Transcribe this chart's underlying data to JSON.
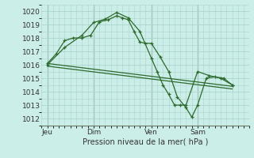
{
  "background_color": "#cceee8",
  "grid_color": "#aad4cc",
  "line_color": "#2d6a2d",
  "xlabel": "Pression niveau de la mer( hPa )",
  "ylim": [
    1011.5,
    1020.5
  ],
  "yticks": [
    1012,
    1013,
    1014,
    1015,
    1016,
    1017,
    1018,
    1019,
    1020
  ],
  "xlim": [
    0,
    36
  ],
  "day_positions": [
    1,
    9,
    19,
    27
  ],
  "day_labels": [
    "Jeu",
    "Dim",
    "Ven",
    "Sam"
  ],
  "vline_positions": [
    1,
    9,
    19,
    27
  ],
  "series1_x": [
    1,
    2.5,
    4,
    5.5,
    7,
    8.5,
    10,
    11.5,
    13,
    14,
    15,
    16,
    17,
    18,
    19,
    20.5,
    22,
    23.5,
    25,
    26,
    27,
    28.5,
    30,
    31.5,
    33
  ],
  "series1_y": [
    1016.1,
    1016.8,
    1017.8,
    1018.0,
    1018.0,
    1018.2,
    1019.2,
    1019.35,
    1019.65,
    1019.5,
    1019.35,
    1018.5,
    1017.7,
    1017.6,
    1017.6,
    1016.6,
    1015.5,
    1013.6,
    1012.8,
    1012.1,
    1013.0,
    1015.0,
    1015.1,
    1015.0,
    1014.5
  ],
  "series2_x": [
    1,
    4,
    7,
    9,
    11,
    13,
    15,
    17,
    19,
    20,
    21,
    22,
    23,
    24,
    25,
    27,
    29,
    31,
    33
  ],
  "series2_y": [
    1016.0,
    1017.3,
    1018.2,
    1019.15,
    1019.4,
    1019.9,
    1019.5,
    1018.5,
    1016.5,
    1015.5,
    1014.5,
    1013.8,
    1013.0,
    1013.0,
    1013.0,
    1015.5,
    1015.2,
    1015.0,
    1014.5
  ],
  "trend1_x": [
    1,
    33
  ],
  "trend1_y": [
    1016.1,
    1014.4
  ],
  "trend2_x": [
    1,
    33
  ],
  "trend2_y": [
    1015.9,
    1014.2
  ]
}
